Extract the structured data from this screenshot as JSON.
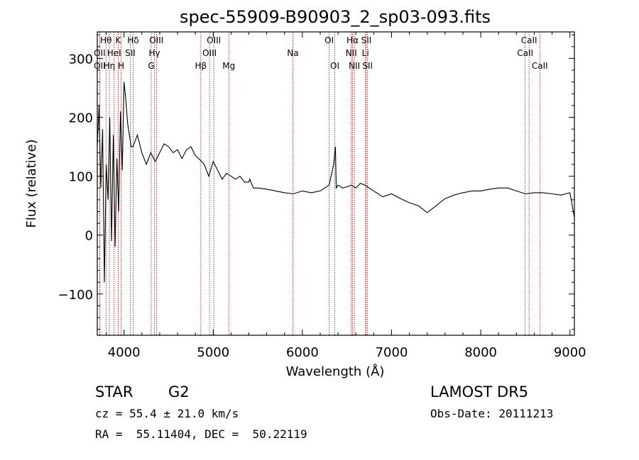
{
  "chart_data": {
    "type": "line",
    "title": "spec-55909-B90903_2_sp03-093.fits",
    "xlabel": "Wavelength (Å)",
    "ylabel": "Flux (relative)",
    "xlim": [
      3700,
      9050
    ],
    "ylim": [
      -170,
      345
    ],
    "xticks": [
      4000,
      5000,
      6000,
      7000,
      8000,
      9000
    ],
    "yticks": [
      -100,
      0,
      100,
      200,
      300
    ],
    "grid": false,
    "spectrum": {
      "x": [
        3700,
        3720,
        3740,
        3760,
        3780,
        3800,
        3820,
        3840,
        3860,
        3880,
        3900,
        3920,
        3940,
        3960,
        3980,
        4000,
        4020,
        4040,
        4060,
        4080,
        4100,
        4150,
        4200,
        4250,
        4300,
        4350,
        4400,
        4450,
        4500,
        4550,
        4600,
        4650,
        4700,
        4750,
        4800,
        4850,
        4900,
        4950,
        5000,
        5050,
        5100,
        5150,
        5200,
        5250,
        5300,
        5350,
        5400,
        5410,
        5450,
        5500,
        5600,
        5700,
        5800,
        5900,
        6000,
        6100,
        6200,
        6300,
        6350,
        6370,
        6380,
        6400,
        6450,
        6500,
        6550,
        6600,
        6650,
        6700,
        6800,
        6900,
        7000,
        7100,
        7200,
        7300,
        7400,
        7500,
        7600,
        7700,
        7800,
        7900,
        8000,
        8100,
        8200,
        8300,
        8400,
        8500,
        8600,
        8700,
        8800,
        8900,
        9000,
        9050
      ],
      "y": [
        150,
        220,
        80,
        180,
        -80,
        120,
        60,
        200,
        -10,
        170,
        -20,
        130,
        40,
        210,
        110,
        260,
        230,
        190,
        170,
        150,
        150,
        170,
        140,
        120,
        140,
        125,
        140,
        155,
        150,
        140,
        145,
        130,
        145,
        150,
        135,
        128,
        120,
        100,
        125,
        110,
        95,
        105,
        100,
        95,
        100,
        90,
        90,
        95,
        80,
        80,
        78,
        75,
        72,
        70,
        75,
        72,
        75,
        85,
        120,
        150,
        80,
        85,
        80,
        82,
        85,
        80,
        88,
        85,
        75,
        65,
        70,
        62,
        55,
        50,
        38,
        50,
        62,
        68,
        72,
        75,
        75,
        78,
        80,
        80,
        75,
        70,
        72,
        72,
        70,
        68,
        72,
        30
      ]
    },
    "lines": [
      {
        "label": "Hθ",
        "wavelength": 3798,
        "row": 1
      },
      {
        "label": "K",
        "wavelength": 3934,
        "row": 1
      },
      {
        "label": "Hδ",
        "wavelength": 4102,
        "row": 1
      },
      {
        "label": "OIII",
        "wavelength": 4363,
        "row": 1
      },
      {
        "label": "OIII",
        "wavelength": 5007,
        "row": 1
      },
      {
        "label": "OI",
        "wavelength": 6300,
        "row": 1
      },
      {
        "label": "Hα",
        "wavelength": 6563,
        "row": 1
      },
      {
        "label": "SII",
        "wavelength": 6717,
        "row": 1
      },
      {
        "label": "CaII",
        "wavelength": 8542,
        "row": 1
      },
      {
        "label": "OII",
        "wavelength": 3727,
        "row": 2
      },
      {
        "label": "HeI",
        "wavelength": 3889,
        "row": 2
      },
      {
        "label": "SII",
        "wavelength": 4070,
        "row": 2
      },
      {
        "label": "Hγ",
        "wavelength": 4341,
        "row": 2
      },
      {
        "label": "OIII",
        "wavelength": 4959,
        "row": 2
      },
      {
        "label": "Na",
        "wavelength": 5893,
        "row": 2
      },
      {
        "label": "NII",
        "wavelength": 6548,
        "row": 2
      },
      {
        "label": "Li",
        "wavelength": 6707,
        "row": 2
      },
      {
        "label": "CaII",
        "wavelength": 8498,
        "row": 2
      },
      {
        "label": "OII",
        "wavelength": 3727,
        "row": 3
      },
      {
        "label": "Hη",
        "wavelength": 3835,
        "row": 3
      },
      {
        "label": "H",
        "wavelength": 3968,
        "row": 3
      },
      {
        "label": "G",
        "wavelength": 4305,
        "row": 3
      },
      {
        "label": "Hβ",
        "wavelength": 4861,
        "row": 3
      },
      {
        "label": "Mg",
        "wavelength": 5175,
        "row": 3
      },
      {
        "label": "OI",
        "wavelength": 6363,
        "row": 3
      },
      {
        "label": "NII",
        "wavelength": 6583,
        "row": 3
      },
      {
        "label": "SII",
        "wavelength": 6731,
        "row": 3
      },
      {
        "label": "CaII",
        "wavelength": 8662,
        "row": 3
      }
    ]
  },
  "info": {
    "class": "STAR",
    "subclass": "G2",
    "cz": "cz = 55.4 ± 21.0 km/s",
    "coords": "RA =  55.11404, DEC =  50.22119",
    "survey": "LAMOST DR5",
    "obs_date": "Obs-Date: 20111213"
  }
}
